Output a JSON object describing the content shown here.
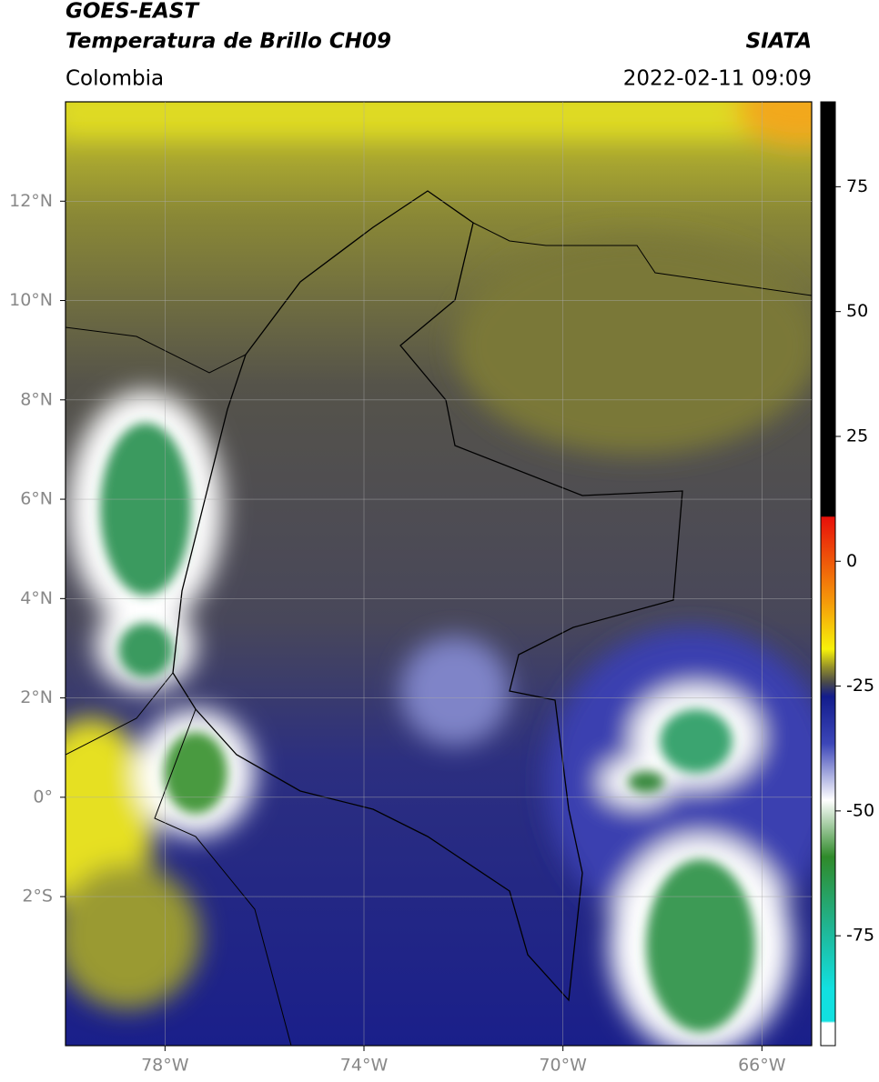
{
  "header": {
    "satellite": "GOES-EAST",
    "product": "Temperatura de Brillo CH09",
    "agency": "SIATA",
    "region": "Colombia",
    "datetime": "2022-02-11 09:09"
  },
  "map": {
    "lon_range": [
      -80,
      -65
    ],
    "lat_range": [
      -5,
      14
    ],
    "lon_ticks": [
      {
        "value": -78,
        "label": "78°W"
      },
      {
        "value": -74,
        "label": "74°W"
      },
      {
        "value": -70,
        "label": "70°W"
      },
      {
        "value": -66,
        "label": "66°W"
      }
    ],
    "lat_ticks": [
      {
        "value": 12,
        "label": "12°N"
      },
      {
        "value": 10,
        "label": "10°N"
      },
      {
        "value": 8,
        "label": "8°N"
      },
      {
        "value": 6,
        "label": "6°N"
      },
      {
        "value": 4,
        "label": "4°N"
      },
      {
        "value": 2,
        "label": "2°N"
      },
      {
        "value": 0,
        "label": "0°"
      },
      {
        "value": -2,
        "label": "2°S"
      }
    ],
    "grid": true
  },
  "colorbar": {
    "range": [
      -97,
      92
    ],
    "ticks": [
      75,
      50,
      25,
      0,
      -25,
      -50,
      -75
    ]
  }
}
